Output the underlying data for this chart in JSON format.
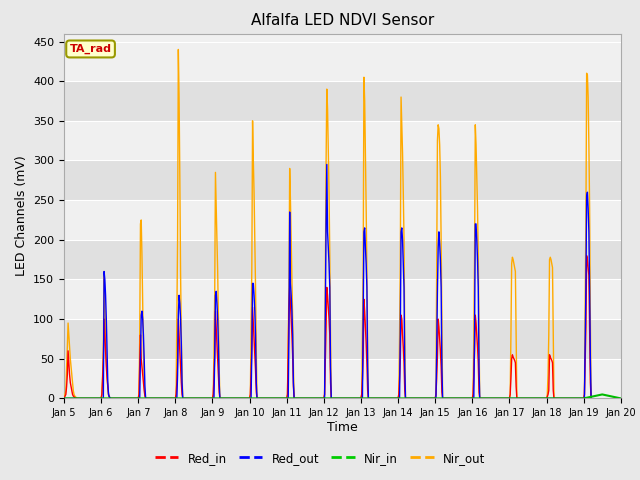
{
  "title": "Alfalfa LED NDVI Sensor",
  "ylabel": "LED Channels (mV)",
  "xlabel": "Time",
  "ylim": [
    0,
    460
  ],
  "ytick_values": [
    0,
    50,
    100,
    150,
    200,
    250,
    300,
    350,
    400,
    450
  ],
  "xtick_labels": [
    "Jan 5",
    "Jan 6",
    "Jan 7",
    "Jan 8",
    "Jan 9",
    "Jan 10",
    "Jan 11",
    "Jan 12",
    "Jan 13",
    "Jan 14",
    "Jan 15",
    "Jan 16",
    "Jan 17",
    "Jan 18",
    "Jan 19",
    "Jan 20"
  ],
  "annotation_text": "TA_rad",
  "annotation_color": "#cc0000",
  "annotation_bg": "#ffffcc",
  "annotation_edge": "#999900",
  "bg_color": "#e8e8e8",
  "band_colors": [
    "#f0f0f0",
    "#e0e0e0"
  ],
  "legend_entries": [
    "Red_in",
    "Red_out",
    "Nir_in",
    "Nir_out"
  ],
  "legend_colors": [
    "#ff0000",
    "#0000ff",
    "#00cc00",
    "#ffaa00"
  ],
  "colors": {
    "red_in": "#ff0000",
    "red_out": "#0000ff",
    "nir_in": "#00bb00",
    "nir_out": "#ffaa00"
  },
  "series": {
    "nir_out": {
      "x": [
        0,
        0.05,
        0.07,
        0.09,
        0.11,
        0.13,
        0.15,
        0.17,
        0.19,
        0.21,
        0.23,
        0.25,
        0.27,
        0.29,
        0.31,
        0.33,
        0.35,
        0.37,
        1,
        1.02,
        1.04,
        1.06,
        1.08,
        1.1,
        1.12,
        1.14,
        1.16,
        1.18,
        1.2,
        1.22,
        1.24,
        1.26,
        2,
        2.02,
        2.04,
        2.06,
        2.08,
        2.1,
        2.12,
        2.14,
        2.16,
        2.18,
        2.2,
        3,
        3.02,
        3.04,
        3.06,
        3.08,
        3.1,
        3.12,
        3.14,
        3.16,
        3.18,
        3.2,
        4,
        4.02,
        4.04,
        4.06,
        4.08,
        4.1,
        4.12,
        4.14,
        4.16,
        4.18,
        4.2,
        5,
        5.02,
        5.04,
        5.06,
        5.08,
        5.1,
        5.12,
        5.14,
        5.16,
        5.18,
        5.2,
        6,
        6.02,
        6.04,
        6.06,
        6.08,
        6.1,
        6.12,
        6.14,
        6.16,
        6.18,
        6.2,
        7,
        7.02,
        7.04,
        7.06,
        7.08,
        7.1,
        7.12,
        7.14,
        7.16,
        7.18,
        7.2,
        8,
        8.02,
        8.04,
        8.06,
        8.08,
        8.1,
        8.12,
        8.14,
        8.16,
        8.18,
        8.2,
        9,
        9.02,
        9.04,
        9.06,
        9.08,
        9.1,
        9.12,
        9.14,
        9.16,
        9.18,
        9.2,
        10,
        10.02,
        10.04,
        10.06,
        10.08,
        10.1,
        10.12,
        10.14,
        10.16,
        10.18,
        10.2,
        11,
        11.02,
        11.04,
        11.06,
        11.08,
        11.1,
        11.12,
        11.14,
        11.16,
        11.18,
        11.2,
        12,
        12.02,
        12.04,
        12.06,
        12.08,
        12.1,
        12.12,
        12.14,
        12.16,
        12.18,
        12.2,
        13,
        13.02,
        13.04,
        13.06,
        13.08,
        13.1,
        13.12,
        13.14,
        13.16,
        13.18,
        13.2,
        14,
        14.02,
        14.04,
        14.06,
        14.08,
        14.1,
        14.12,
        14.14,
        14.16,
        14.18,
        14.2
      ],
      "y": [
        0,
        10,
        40,
        65,
        95,
        80,
        65,
        50,
        40,
        30,
        20,
        10,
        5,
        3,
        2,
        1,
        0,
        0,
        0,
        5,
        30,
        60,
        160,
        130,
        80,
        50,
        30,
        15,
        5,
        2,
        1,
        0,
        0,
        5,
        80,
        220,
        225,
        180,
        120,
        60,
        20,
        5,
        0,
        0,
        5,
        100,
        200,
        440,
        380,
        280,
        160,
        80,
        30,
        0,
        0,
        5,
        60,
        130,
        285,
        240,
        200,
        160,
        100,
        40,
        0,
        0,
        5,
        80,
        165,
        350,
        300,
        260,
        200,
        140,
        60,
        0,
        0,
        5,
        70,
        140,
        290,
        250,
        200,
        150,
        100,
        40,
        0,
        0,
        5,
        150,
        295,
        390,
        365,
        310,
        260,
        180,
        80,
        0,
        0,
        5,
        80,
        165,
        405,
        375,
        310,
        240,
        160,
        60,
        0,
        0,
        5,
        80,
        170,
        380,
        345,
        310,
        260,
        200,
        80,
        0,
        0,
        5,
        160,
        325,
        345,
        340,
        320,
        280,
        200,
        100,
        0,
        0,
        5,
        80,
        175,
        345,
        320,
        280,
        240,
        180,
        80,
        0,
        0,
        5,
        80,
        170,
        178,
        175,
        170,
        165,
        160,
        80,
        0,
        0,
        5,
        30,
        80,
        175,
        178,
        175,
        170,
        165,
        80,
        0,
        0,
        5,
        110,
        225,
        410,
        408,
        380,
        320,
        240,
        100,
        0
      ]
    },
    "red_in": {
      "x": [
        0,
        0.05,
        0.07,
        0.09,
        0.11,
        0.13,
        0.15,
        0.17,
        0.19,
        0.21,
        0.23,
        0.25,
        0.27,
        0.29,
        0.31,
        0.33,
        0.35,
        0.37,
        1,
        1.02,
        1.04,
        1.06,
        1.08,
        1.1,
        1.12,
        1.14,
        1.16,
        1.18,
        1.2,
        1.22,
        1.24,
        1.26,
        2,
        2.02,
        2.04,
        2.06,
        2.08,
        2.1,
        2.12,
        2.14,
        2.16,
        2.18,
        2.2,
        3,
        3.02,
        3.04,
        3.06,
        3.08,
        3.1,
        3.12,
        3.14,
        3.16,
        3.18,
        3.2,
        4,
        4.02,
        4.04,
        4.06,
        4.08,
        4.1,
        4.12,
        4.14,
        4.16,
        4.18,
        4.2,
        5,
        5.02,
        5.04,
        5.06,
        5.08,
        5.1,
        5.12,
        5.14,
        5.16,
        5.18,
        5.2,
        6,
        6.02,
        6.04,
        6.06,
        6.08,
        6.1,
        6.12,
        6.14,
        6.16,
        6.18,
        6.2,
        7,
        7.02,
        7.04,
        7.06,
        7.08,
        7.1,
        7.12,
        7.14,
        7.16,
        7.18,
        7.2,
        8,
        8.02,
        8.04,
        8.06,
        8.08,
        8.1,
        8.12,
        8.14,
        8.16,
        8.18,
        8.2,
        9,
        9.02,
        9.04,
        9.06,
        9.08,
        9.1,
        9.12,
        9.14,
        9.16,
        9.18,
        9.2,
        10,
        10.02,
        10.04,
        10.06,
        10.08,
        10.1,
        10.12,
        10.14,
        10.16,
        10.18,
        10.2,
        11,
        11.02,
        11.04,
        11.06,
        11.08,
        11.1,
        11.12,
        11.14,
        11.16,
        11.18,
        11.2,
        12,
        12.02,
        12.04,
        12.06,
        12.08,
        12.1,
        12.12,
        12.14,
        12.16,
        12.18,
        12.2,
        13,
        13.02,
        13.04,
        13.06,
        13.08,
        13.1,
        13.12,
        13.14,
        13.16,
        13.18,
        13.2,
        14,
        14.02,
        14.04,
        14.06,
        14.08,
        14.1,
        14.12,
        14.14,
        14.16,
        14.18,
        14.2
      ],
      "y": [
        0,
        5,
        15,
        30,
        60,
        45,
        30,
        20,
        15,
        10,
        5,
        3,
        2,
        1,
        0,
        0,
        0,
        0,
        0,
        5,
        25,
        50,
        100,
        80,
        60,
        40,
        25,
        15,
        5,
        2,
        0,
        0,
        0,
        5,
        40,
        80,
        50,
        40,
        30,
        20,
        10,
        3,
        0,
        0,
        5,
        20,
        45,
        100,
        80,
        60,
        40,
        20,
        5,
        0,
        0,
        5,
        25,
        55,
        110,
        90,
        70,
        50,
        30,
        8,
        0,
        0,
        5,
        30,
        65,
        115,
        95,
        75,
        55,
        35,
        8,
        0,
        0,
        5,
        55,
        115,
        140,
        120,
        100,
        80,
        55,
        15,
        0,
        0,
        5,
        45,
        90,
        140,
        130,
        115,
        100,
        80,
        20,
        0,
        0,
        5,
        25,
        55,
        125,
        110,
        90,
        70,
        45,
        10,
        0,
        0,
        5,
        25,
        50,
        105,
        100,
        80,
        65,
        45,
        10,
        0,
        0,
        5,
        25,
        55,
        100,
        90,
        75,
        60,
        40,
        8,
        0,
        0,
        5,
        30,
        60,
        105,
        95,
        80,
        65,
        45,
        8,
        0,
        0,
        5,
        25,
        50,
        55,
        52,
        50,
        48,
        45,
        15,
        0,
        0,
        2,
        5,
        10,
        55,
        52,
        50,
        48,
        45,
        10,
        0,
        0,
        5,
        45,
        90,
        180,
        175,
        165,
        155,
        90,
        20,
        0
      ]
    },
    "red_out": {
      "x": [
        0,
        0.37,
        1,
        1.02,
        1.04,
        1.06,
        1.08,
        1.1,
        1.12,
        1.14,
        1.16,
        1.18,
        1.2,
        1.22,
        1.24,
        1.26,
        2,
        2.02,
        2.04,
        2.06,
        2.08,
        2.1,
        2.12,
        2.14,
        2.16,
        2.18,
        2.2,
        3,
        3.02,
        3.04,
        3.06,
        3.08,
        3.1,
        3.12,
        3.14,
        3.16,
        3.18,
        3.2,
        4,
        4.02,
        4.04,
        4.06,
        4.08,
        4.1,
        4.12,
        4.14,
        4.16,
        4.18,
        4.2,
        5,
        5.02,
        5.04,
        5.06,
        5.08,
        5.1,
        5.12,
        5.14,
        5.16,
        5.18,
        5.2,
        6,
        6.02,
        6.04,
        6.06,
        6.08,
        6.1,
        6.12,
        6.14,
        6.16,
        6.18,
        6.2,
        7,
        7.02,
        7.04,
        7.06,
        7.08,
        7.1,
        7.12,
        7.14,
        7.16,
        7.18,
        7.2,
        8,
        8.02,
        8.04,
        8.06,
        8.08,
        8.1,
        8.12,
        8.14,
        8.16,
        8.18,
        8.2,
        9,
        9.02,
        9.04,
        9.06,
        9.08,
        9.1,
        9.12,
        9.14,
        9.16,
        9.18,
        9.2,
        10,
        10.02,
        10.04,
        10.06,
        10.08,
        10.1,
        10.12,
        10.14,
        10.16,
        10.18,
        10.2,
        11,
        11.02,
        11.04,
        11.06,
        11.08,
        11.1,
        11.12,
        11.14,
        11.16,
        11.18,
        11.2,
        12,
        12.02,
        12.04,
        12.06,
        12.08,
        12.1,
        12.12,
        12.14,
        12.16,
        12.18,
        12.2,
        13,
        13.02,
        13.04,
        13.06,
        13.08,
        13.1,
        13.12,
        13.14,
        13.16,
        13.18,
        13.2,
        14,
        14.02,
        14.04,
        14.06,
        14.08,
        14.1,
        14.12,
        14.14,
        14.16,
        14.18,
        14.2
      ],
      "y": [
        0,
        0,
        0,
        0,
        0,
        0,
        160,
        150,
        130,
        100,
        60,
        20,
        5,
        2,
        1,
        0,
        0,
        0,
        0,
        50,
        105,
        110,
        100,
        80,
        50,
        15,
        0,
        0,
        0,
        0,
        30,
        105,
        130,
        120,
        100,
        70,
        20,
        0,
        0,
        0,
        0,
        50,
        130,
        135,
        120,
        100,
        70,
        20,
        0,
        0,
        0,
        0,
        60,
        145,
        145,
        130,
        110,
        80,
        20,
        0,
        0,
        0,
        0,
        80,
        235,
        145,
        130,
        110,
        80,
        20,
        0,
        0,
        0,
        110,
        220,
        295,
        210,
        190,
        170,
        140,
        40,
        0,
        0,
        0,
        0,
        105,
        210,
        215,
        190,
        170,
        140,
        40,
        0,
        0,
        0,
        0,
        80,
        210,
        215,
        200,
        170,
        140,
        40,
        0,
        0,
        0,
        60,
        135,
        190,
        210,
        195,
        175,
        140,
        40,
        0,
        0,
        0,
        0,
        80,
        220,
        220,
        200,
        175,
        140,
        40,
        0,
        0,
        0,
        0,
        0,
        0,
        0,
        0,
        0,
        0,
        0,
        0,
        0,
        0,
        0,
        0,
        0,
        0,
        0,
        0,
        0,
        0,
        0,
        0,
        0,
        70,
        140,
        255,
        260,
        240,
        210,
        140,
        50,
        0
      ]
    },
    "nir_in": {
      "x": [
        0,
        1,
        2,
        3,
        4,
        5,
        6,
        7,
        8,
        9,
        10,
        11,
        12,
        13,
        14,
        14.5,
        15
      ],
      "y": [
        0,
        0,
        0,
        0,
        0,
        0,
        0,
        0,
        0,
        0,
        0,
        0,
        0,
        0,
        0,
        5,
        0
      ]
    }
  }
}
